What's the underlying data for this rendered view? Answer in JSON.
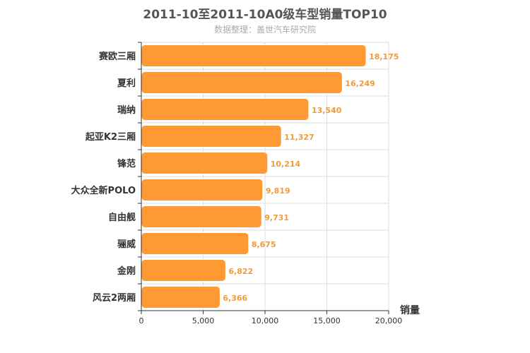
{
  "chart_data": {
    "type": "bar",
    "orientation": "horizontal",
    "title": "2011-10至2011-10A0级车型销量TOP10",
    "subtitle": "数据整理：盖世汽车研究院",
    "xlabel": "销量",
    "ylabel": "",
    "categories": [
      "赛欧三厢",
      "夏利",
      "瑞纳",
      "起亚K2三厢",
      "锋范",
      "大众全新POLO",
      "自由舰",
      "骊威",
      "金刚",
      "风云2两厢"
    ],
    "values": [
      18175,
      16249,
      13540,
      11327,
      10214,
      9819,
      9731,
      8675,
      6822,
      6366
    ],
    "value_labels": [
      "18,175",
      "16,249",
      "13,540",
      "11,327",
      "10,214",
      "9,819",
      "9,731",
      "8,675",
      "6,822",
      "6,366"
    ],
    "xlim": [
      0,
      20000
    ],
    "xticks": [
      0,
      5000,
      10000,
      15000,
      20000
    ],
    "xtick_labels": [
      "0",
      "5,000",
      "10,000",
      "15,000",
      "20,000"
    ],
    "grid": true,
    "bar_color": "#ff9933",
    "label_color": "#f09a3a"
  }
}
